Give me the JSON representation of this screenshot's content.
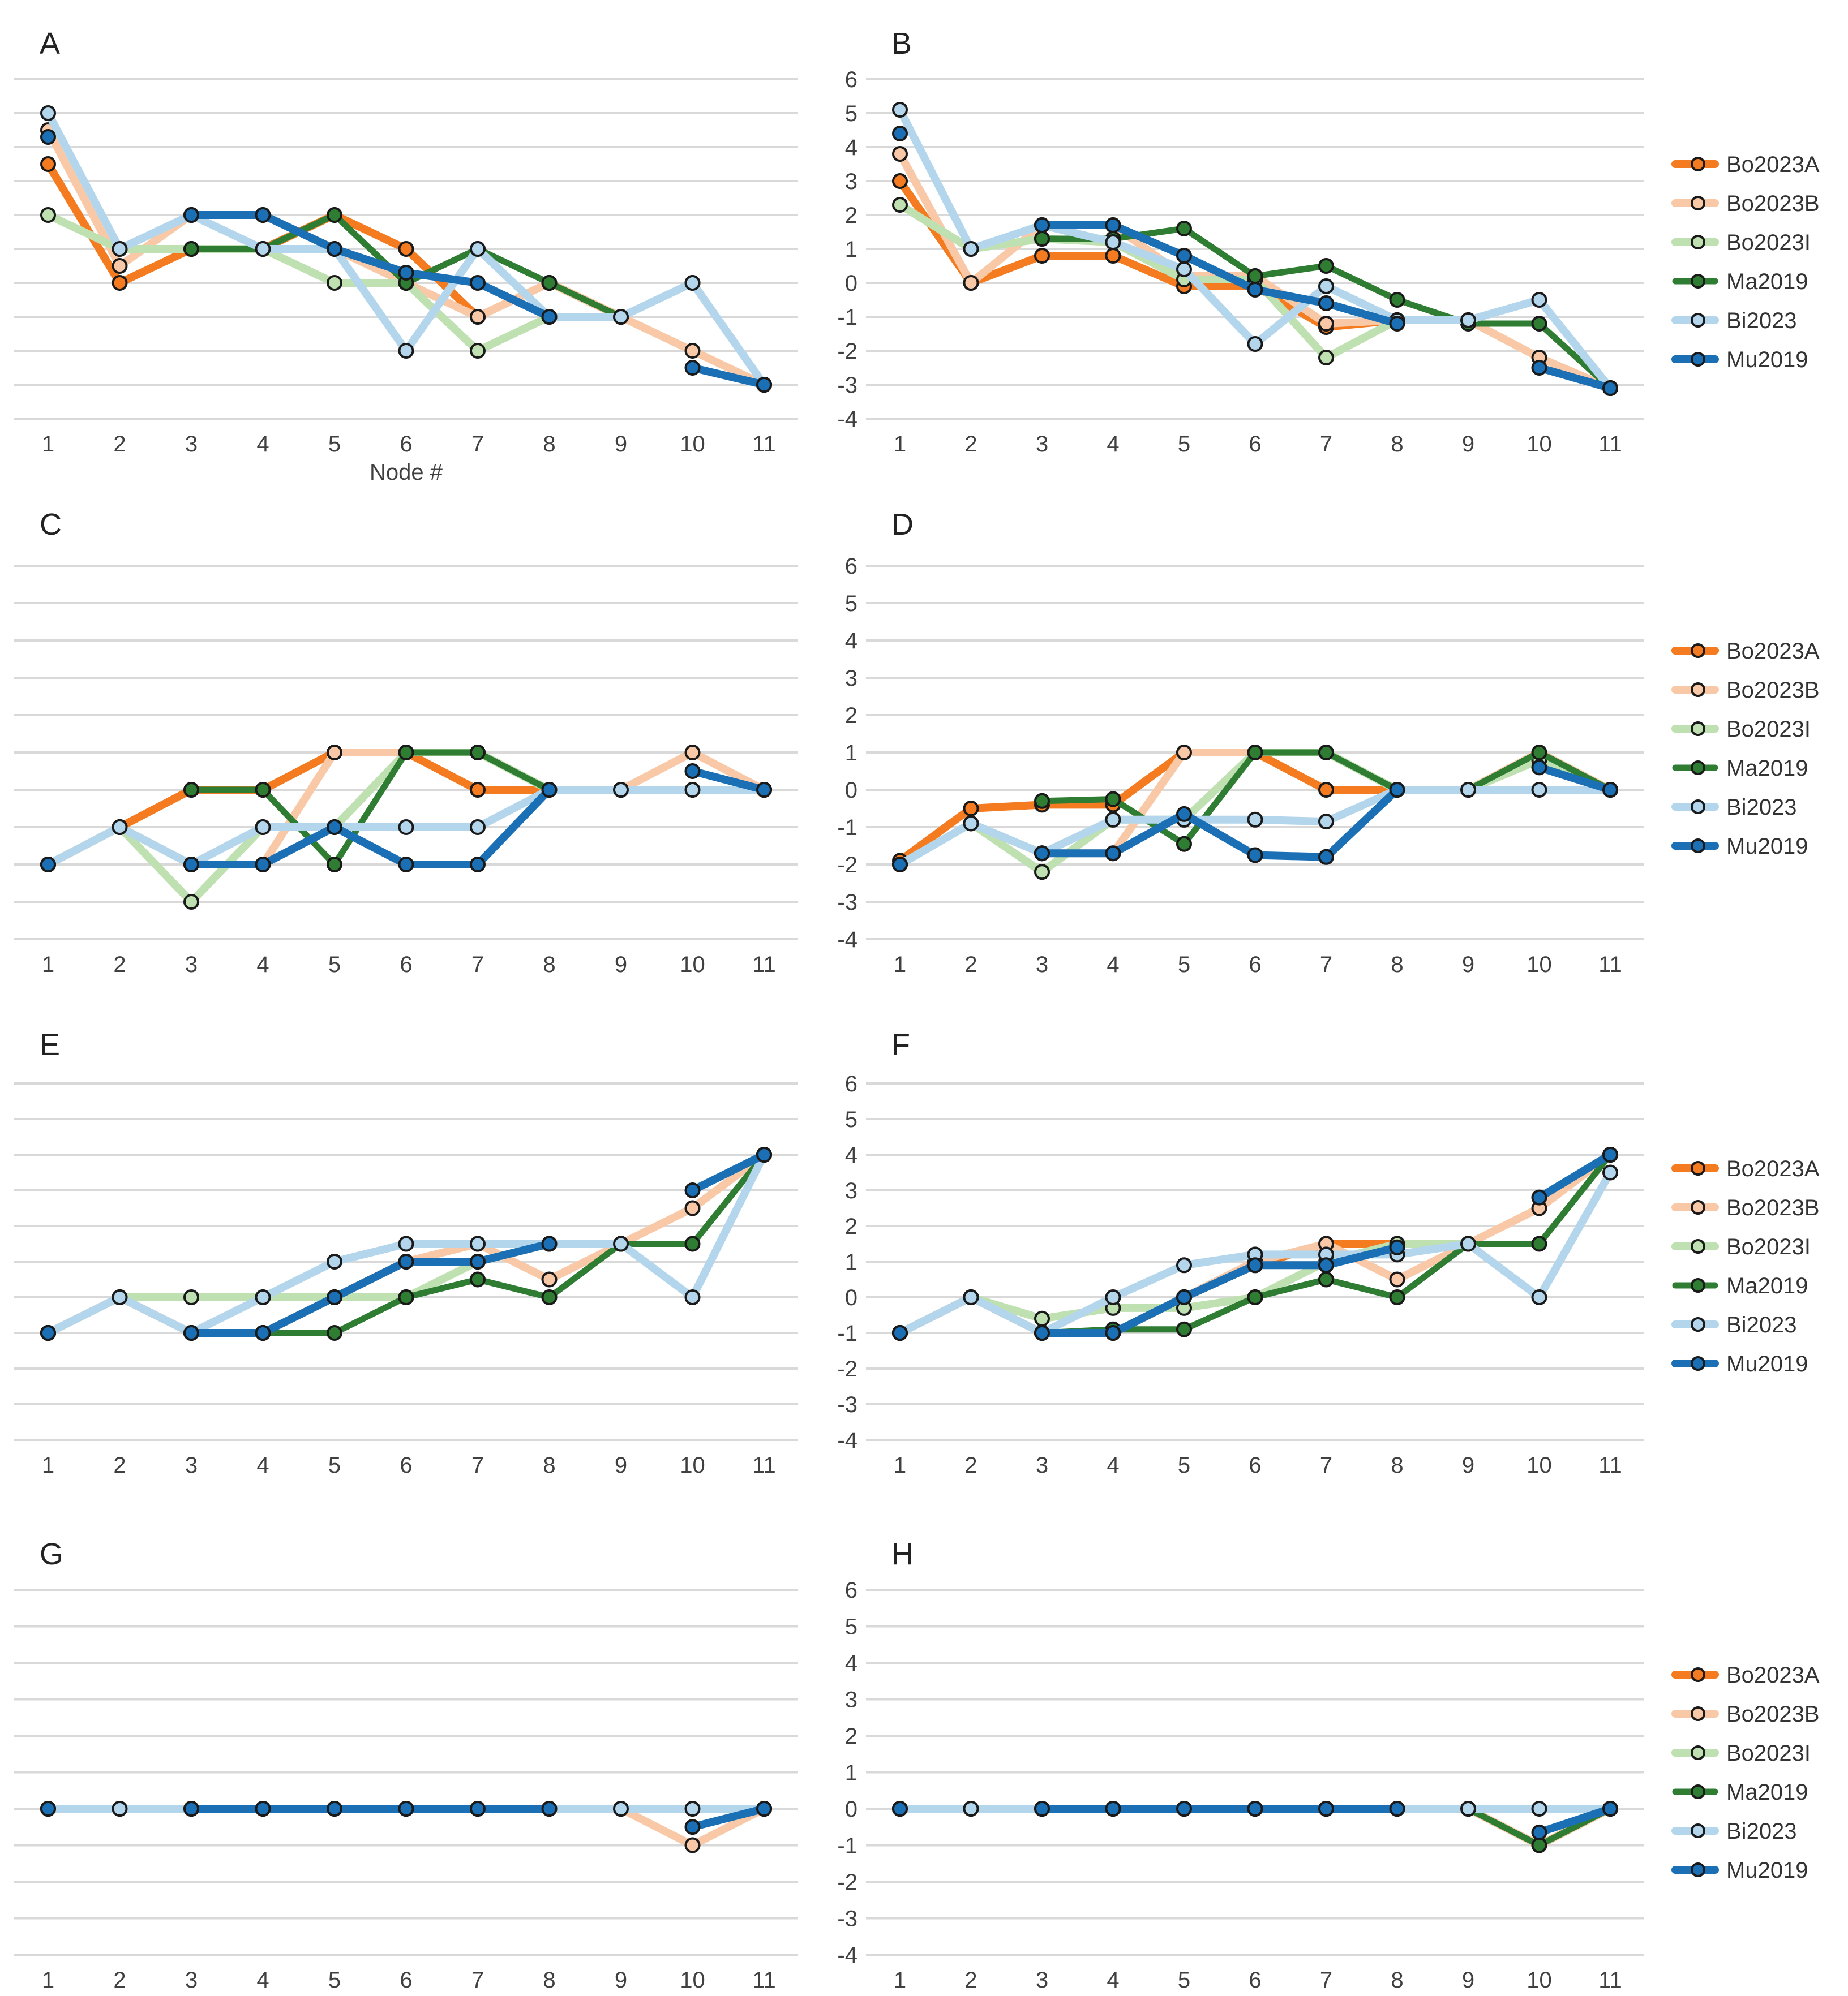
{
  "figure": {
    "x_title": "Node #"
  },
  "series_styles": [
    {
      "name": "Bo2023A",
      "color": "#f47b20"
    },
    {
      "name": "Bo2023B",
      "color": "#f9c9a7"
    },
    {
      "name": "Bo2023I",
      "color": "#bfe0b0"
    },
    {
      "name": "Ma2019",
      "color": "#2e7d32"
    },
    {
      "name": "Bi2023",
      "color": "#b4d6ec"
    },
    {
      "name": "Mu2019",
      "color": "#1a6fb5"
    }
  ],
  "chart_data": [
    {
      "label": "A",
      "type": "line",
      "xlabel": "Node #",
      "show_yticks": false,
      "legend": false,
      "x": [
        1,
        2,
        3,
        4,
        5,
        6,
        7,
        8,
        9,
        10,
        11
      ],
      "ylim": [
        -4,
        6
      ],
      "yticks": [
        "6",
        "5",
        "4",
        "3",
        "2",
        "1",
        "0",
        "-1",
        "-2",
        "-3",
        "-4"
      ],
      "series": [
        {
          "name": "Bo2023A",
          "values": [
            3.5,
            0,
            1,
            1,
            2,
            1,
            -1,
            0,
            -1,
            null,
            -3
          ]
        },
        {
          "name": "Bo2023B",
          "values": [
            4.5,
            0.5,
            2,
            2,
            1,
            0,
            -1,
            0,
            -1,
            -2,
            -3
          ]
        },
        {
          "name": "Bo2023I",
          "values": [
            2,
            1,
            1,
            1,
            0,
            0,
            -2,
            -1,
            -1,
            null,
            -3
          ]
        },
        {
          "name": "Ma2019",
          "values": [
            null,
            null,
            1,
            1,
            2,
            0,
            1,
            0,
            -1,
            0,
            -3
          ]
        },
        {
          "name": "Bi2023",
          "values": [
            5,
            1,
            2,
            1,
            1,
            -2,
            1,
            -1,
            -1,
            0,
            -3
          ]
        },
        {
          "name": "Mu2019",
          "values": [
            4.3,
            null,
            2,
            2,
            1,
            0.3,
            0,
            -1,
            null,
            -2.5,
            -3
          ]
        }
      ]
    },
    {
      "label": "B",
      "type": "line",
      "xlabel": "",
      "show_yticks": true,
      "legend": true,
      "x": [
        1,
        2,
        3,
        4,
        5,
        6,
        7,
        8,
        9,
        10,
        11
      ],
      "ylim": [
        -4,
        6
      ],
      "yticks": [
        "6",
        "5",
        "4",
        "3",
        "2",
        "1",
        "0",
        "-1",
        "-2",
        "-3",
        "-4"
      ],
      "series": [
        {
          "name": "Bo2023A",
          "values": [
            3,
            0,
            0.8,
            0.8,
            -0.1,
            -0.1,
            -1.3,
            -1.1,
            -1.1,
            null,
            -3.1
          ]
        },
        {
          "name": "Bo2023B",
          "values": [
            3.8,
            0,
            1.7,
            1.7,
            0.2,
            0.2,
            -1.2,
            -1.1,
            -1.1,
            -2.2,
            -3.1
          ]
        },
        {
          "name": "Bo2023I",
          "values": [
            2.3,
            1,
            1.3,
            1.2,
            0.1,
            0.1,
            -2.2,
            -1.1,
            -1.1,
            null,
            -3.1
          ]
        },
        {
          "name": "Ma2019",
          "values": [
            null,
            null,
            1.3,
            1.3,
            1.6,
            0.2,
            0.5,
            -0.5,
            -1.2,
            -1.2,
            -3.1
          ]
        },
        {
          "name": "Bi2023",
          "values": [
            5.1,
            1,
            1.7,
            1.2,
            0.4,
            -1.8,
            -0.1,
            -1.1,
            -1.1,
            -0.5,
            -3.1
          ]
        },
        {
          "name": "Mu2019",
          "values": [
            4.4,
            null,
            1.7,
            1.7,
            0.8,
            -0.2,
            -0.6,
            -1.2,
            null,
            -2.5,
            -3.1
          ]
        }
      ]
    },
    {
      "label": "C",
      "type": "line",
      "xlabel": "",
      "show_yticks": false,
      "legend": false,
      "x": [
        1,
        2,
        3,
        4,
        5,
        6,
        7,
        8,
        9,
        10,
        11
      ],
      "ylim": [
        -4,
        6
      ],
      "yticks": [
        "6",
        "5",
        "4",
        "3",
        "2",
        "1",
        "0",
        "-1",
        "-2",
        "-3",
        "-4"
      ],
      "series": [
        {
          "name": "Bo2023A",
          "values": [
            -2,
            -1,
            0,
            0,
            1,
            1,
            0,
            0,
            0,
            null,
            0
          ]
        },
        {
          "name": "Bo2023B",
          "values": [
            -2,
            -1,
            -2,
            -2,
            1,
            1,
            1,
            0,
            0,
            1,
            0
          ]
        },
        {
          "name": "Bo2023I",
          "values": [
            -2,
            -1,
            -3,
            -1,
            -1,
            1,
            1,
            0,
            0,
            0,
            0
          ]
        },
        {
          "name": "Ma2019",
          "values": [
            null,
            null,
            0,
            0,
            -2,
            1,
            1,
            0,
            0,
            0,
            0
          ]
        },
        {
          "name": "Bi2023",
          "values": [
            -2,
            -1,
            -2,
            -1,
            -1,
            -1,
            -1,
            0,
            0,
            0,
            0
          ]
        },
        {
          "name": "Mu2019",
          "values": [
            -2,
            null,
            -2,
            -2,
            -1,
            -2,
            -2,
            0,
            null,
            0.5,
            0
          ]
        }
      ]
    },
    {
      "label": "D",
      "type": "line",
      "xlabel": "",
      "show_yticks": true,
      "legend": true,
      "x": [
        1,
        2,
        3,
        4,
        5,
        6,
        7,
        8,
        9,
        10,
        11
      ],
      "ylim": [
        -4,
        6
      ],
      "yticks": [
        "6",
        "5",
        "4",
        "3",
        "2",
        "1",
        "0",
        "-1",
        "-2",
        "-3",
        "-4"
      ],
      "series": [
        {
          "name": "Bo2023A",
          "values": [
            -1.9,
            -0.5,
            -0.4,
            -0.4,
            1,
            1,
            0,
            0,
            0,
            null,
            0
          ]
        },
        {
          "name": "Bo2023B",
          "values": [
            -2,
            -0.9,
            -1.7,
            -1.7,
            1,
            1,
            1,
            0,
            0,
            1,
            0
          ]
        },
        {
          "name": "Bo2023I",
          "values": [
            -2,
            -0.9,
            -2.2,
            -0.8,
            -0.8,
            1,
            1,
            0,
            0,
            0.8,
            0
          ]
        },
        {
          "name": "Ma2019",
          "values": [
            null,
            null,
            -0.3,
            -0.25,
            -1.45,
            1,
            1,
            0,
            0,
            1,
            0
          ]
        },
        {
          "name": "Bi2023",
          "values": [
            -2,
            -0.9,
            -1.7,
            -0.8,
            -0.8,
            -0.8,
            -0.85,
            0,
            0,
            0,
            0
          ]
        },
        {
          "name": "Mu2019",
          "values": [
            -2,
            null,
            -1.7,
            -1.7,
            -0.65,
            -1.75,
            -1.8,
            0,
            null,
            0.6,
            0
          ]
        }
      ]
    },
    {
      "label": "E",
      "type": "line",
      "xlabel": "",
      "show_yticks": false,
      "legend": false,
      "x": [
        1,
        2,
        3,
        4,
        5,
        6,
        7,
        8,
        9,
        10,
        11
      ],
      "ylim": [
        -4,
        6
      ],
      "yticks": [
        "6",
        "5",
        "4",
        "3",
        "2",
        "1",
        "0",
        "-1",
        "-2",
        "-3",
        "-4"
      ],
      "series": [
        {
          "name": "Bo2023A",
          "values": [
            -1,
            0,
            -1,
            -1,
            0,
            1,
            1,
            1.5,
            1.5,
            null,
            4
          ]
        },
        {
          "name": "Bo2023B",
          "values": [
            -1,
            0,
            -1,
            -1,
            0,
            1,
            1.5,
            0.5,
            1.5,
            2.5,
            4
          ]
        },
        {
          "name": "Bo2023I",
          "values": [
            -1,
            0,
            0,
            0,
            0,
            0,
            1,
            1.5,
            1.5,
            null,
            4
          ]
        },
        {
          "name": "Ma2019",
          "values": [
            null,
            null,
            -1,
            -1,
            -1,
            0,
            0.5,
            0,
            1.5,
            1.5,
            4
          ]
        },
        {
          "name": "Bi2023",
          "values": [
            -1,
            0,
            -1,
            0,
            1,
            1.5,
            1.5,
            1.5,
            1.5,
            0,
            4
          ]
        },
        {
          "name": "Mu2019",
          "values": [
            -1,
            null,
            -1,
            -1,
            0,
            1,
            1,
            1.5,
            null,
            3,
            4
          ]
        }
      ]
    },
    {
      "label": "F",
      "type": "line",
      "xlabel": "",
      "show_yticks": true,
      "legend": true,
      "x": [
        1,
        2,
        3,
        4,
        5,
        6,
        7,
        8,
        9,
        10,
        11
      ],
      "ylim": [
        -4,
        6
      ],
      "yticks": [
        "6",
        "5",
        "4",
        "3",
        "2",
        "1",
        "0",
        "-1",
        "-2",
        "-3",
        "-4"
      ],
      "series": [
        {
          "name": "Bo2023A",
          "values": [
            -1,
            0,
            -1,
            -1,
            0,
            0.9,
            1.5,
            1.5,
            1.5,
            null,
            4
          ]
        },
        {
          "name": "Bo2023B",
          "values": [
            -1,
            0,
            -1,
            -1,
            0,
            1,
            1.5,
            0.5,
            1.5,
            2.5,
            4
          ]
        },
        {
          "name": "Bo2023I",
          "values": [
            -1,
            0,
            -0.6,
            -0.3,
            -0.3,
            0,
            1,
            1.5,
            1.5,
            null,
            4
          ]
        },
        {
          "name": "Ma2019",
          "values": [
            null,
            null,
            -1,
            -0.9,
            -0.9,
            0,
            0.5,
            0,
            1.5,
            1.5,
            4
          ]
        },
        {
          "name": "Bi2023",
          "values": [
            -1,
            0,
            -1,
            0,
            0.9,
            1.2,
            1.2,
            1.2,
            1.5,
            0,
            3.5
          ]
        },
        {
          "name": "Mu2019",
          "values": [
            -1,
            null,
            -1,
            -1,
            0,
            0.9,
            0.9,
            1.4,
            null,
            2.8,
            4
          ]
        }
      ]
    },
    {
      "label": "G",
      "type": "line",
      "xlabel": "",
      "show_yticks": false,
      "legend": false,
      "x": [
        1,
        2,
        3,
        4,
        5,
        6,
        7,
        8,
        9,
        10,
        11
      ],
      "ylim": [
        -4,
        6
      ],
      "yticks": [
        "6",
        "5",
        "4",
        "3",
        "2",
        "1",
        "0",
        "-1",
        "-2",
        "-3",
        "-4"
      ],
      "series": [
        {
          "name": "Bo2023A",
          "values": [
            0,
            0,
            0,
            0,
            0,
            0,
            0,
            0,
            0,
            null,
            0
          ]
        },
        {
          "name": "Bo2023B",
          "values": [
            0,
            0,
            0,
            0,
            0,
            0,
            0,
            0,
            0,
            -1,
            0
          ]
        },
        {
          "name": "Bo2023I",
          "values": [
            0,
            0,
            0,
            0,
            0,
            0,
            0,
            0,
            0,
            null,
            0
          ]
        },
        {
          "name": "Ma2019",
          "values": [
            null,
            null,
            0,
            0,
            0,
            0,
            0,
            0,
            0,
            0,
            0
          ]
        },
        {
          "name": "Bi2023",
          "values": [
            0,
            0,
            0,
            0,
            0,
            0,
            0,
            0,
            0,
            0,
            0
          ]
        },
        {
          "name": "Mu2019",
          "values": [
            0,
            null,
            0,
            0,
            0,
            0,
            0,
            0,
            null,
            -0.5,
            0
          ]
        }
      ]
    },
    {
      "label": "H",
      "type": "line",
      "xlabel": "",
      "show_yticks": true,
      "legend": true,
      "x": [
        1,
        2,
        3,
        4,
        5,
        6,
        7,
        8,
        9,
        10,
        11
      ],
      "ylim": [
        -4,
        6
      ],
      "yticks": [
        "6",
        "5",
        "4",
        "3",
        "2",
        "1",
        "0",
        "-1",
        "-2",
        "-3",
        "-4"
      ],
      "series": [
        {
          "name": "Bo2023A",
          "values": [
            0,
            0,
            0,
            0,
            0,
            0,
            0,
            0,
            0,
            null,
            0
          ]
        },
        {
          "name": "Bo2023B",
          "values": [
            0,
            0,
            0,
            0,
            0,
            0,
            0,
            0,
            0,
            -1,
            0
          ]
        },
        {
          "name": "Bo2023I",
          "values": [
            0,
            0,
            0,
            0,
            0,
            0,
            0,
            0,
            0,
            null,
            0
          ]
        },
        {
          "name": "Ma2019",
          "values": [
            null,
            null,
            0,
            0,
            0,
            0,
            0,
            0,
            0,
            -1,
            0
          ]
        },
        {
          "name": "Bi2023",
          "values": [
            0,
            0,
            0,
            0,
            0,
            0,
            0,
            0,
            0,
            0,
            0
          ]
        },
        {
          "name": "Mu2019",
          "values": [
            0,
            null,
            0,
            0,
            0,
            0,
            0,
            0,
            null,
            -0.65,
            0
          ]
        }
      ]
    }
  ]
}
